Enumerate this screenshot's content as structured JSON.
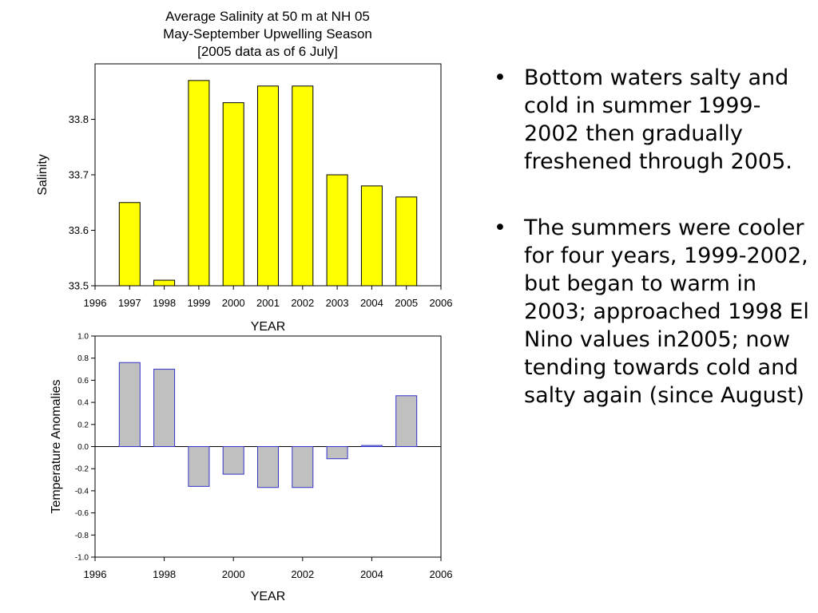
{
  "chart_data": [
    {
      "type": "bar",
      "title": [
        "Average Salinity at 50 m at NH 05",
        "May-September Upwelling Season",
        "[2005 data as of 6 July]"
      ],
      "xlabel": "YEAR",
      "ylabel": "Salinity",
      "xlim": [
        1996,
        2006
      ],
      "ylim": [
        33.5,
        33.9
      ],
      "xticks": [
        "1996",
        "1997",
        "1998",
        "1999",
        "2000",
        "2001",
        "2002",
        "2003",
        "2004",
        "2005",
        "2006"
      ],
      "yticks": [
        "33.5",
        "33.6",
        "33.7",
        "33.8"
      ],
      "categories": [
        1997,
        1998,
        1999,
        2000,
        2001,
        2002,
        2003,
        2004,
        2005
      ],
      "values": [
        33.65,
        33.51,
        33.87,
        33.83,
        33.86,
        33.86,
        33.7,
        33.68,
        33.66
      ],
      "bar_color": "#ffff00",
      "grid": false
    },
    {
      "type": "bar",
      "xlabel": "YEAR",
      "ylabel": "Temperature Anomalies",
      "xlim": [
        1996,
        2006
      ],
      "ylim": [
        -1.0,
        1.0
      ],
      "xticks": [
        "1996",
        "1998",
        "2000",
        "2002",
        "2004",
        "2006"
      ],
      "yticks": [
        "-1.0",
        "-0.8",
        "-0.6",
        "-0.4",
        "-0.2",
        "0.0",
        "0.2",
        "0.4",
        "0.6",
        "0.8",
        "1.0"
      ],
      "categories": [
        1997,
        1998,
        1999,
        2000,
        2001,
        2002,
        2003,
        2004,
        2005
      ],
      "values": [
        0.76,
        0.7,
        -0.36,
        -0.25,
        -0.37,
        -0.37,
        -0.11,
        0.01,
        0.46
      ],
      "bar_color": "#c0c0c0",
      "bar_edge_color": "#3333cc",
      "grid": false
    }
  ],
  "bullets": [
    "Bottom waters salty and cold in summer 1999-2002 then gradually freshened through 2005.",
    "The summers were cooler for four years, 1999-2002, but began to warm in 2003; approached 1998 El Nino values in2005; now tending towards cold and salty again (since August)"
  ],
  "bullet_symbol": "•"
}
